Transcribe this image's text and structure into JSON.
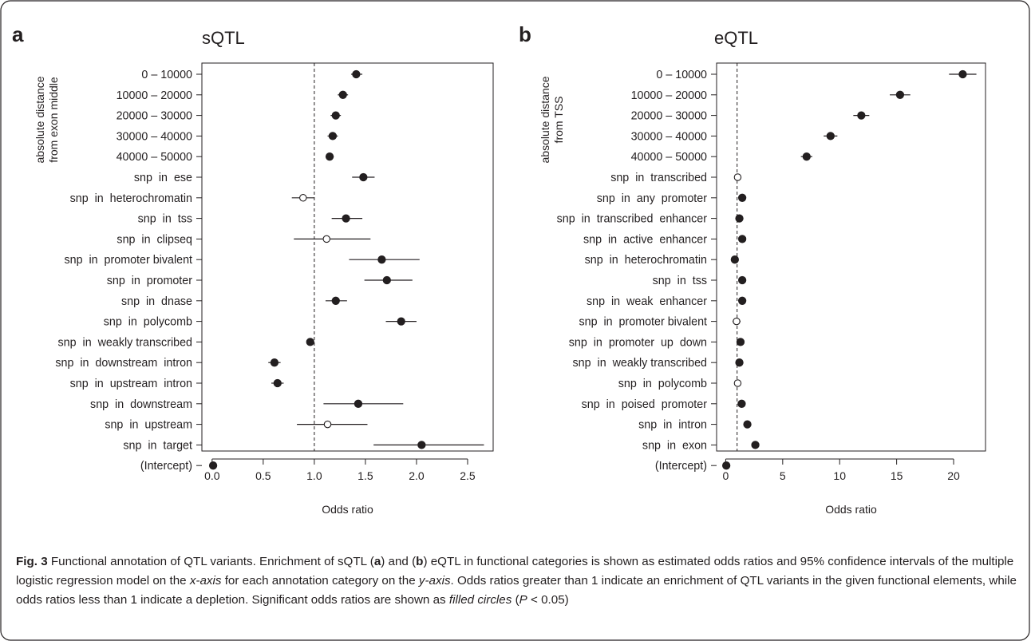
{
  "caption": {
    "label": "Fig. 3",
    "p1": " Functional annotation of QTL variants. Enrichment of sQTL (",
    "a": "a",
    "p2": ") and (",
    "b": "b",
    "p3": ") eQTL in functional categories is shown as estimated odds ratios and 95% confidence intervals of the multiple logistic regression model on the ",
    "xaxis": "x-axis",
    "p4": " for each annotation category on the ",
    "yaxis": "y-axis",
    "p5": ". Odds ratios greater than 1 indicate an enrichment of QTL variants in the given functional elements, while odds ratios less than 1 indicate a depletion. Significant odds ratios are shown as ",
    "filled": "filled circles",
    "p6": " (",
    "pvar": "P",
    "p7": " < 0.05)"
  },
  "chart_data": [
    {
      "type": "scatter",
      "panel_letter": "a",
      "title": "sQTL",
      "xlabel": "Odds ratio",
      "ylabel": [
        "absolute distance",
        "from exon middle"
      ],
      "xlim": [
        -0.1,
        2.75
      ],
      "xticks": [
        0.0,
        0.5,
        1.0,
        1.5,
        2.0,
        2.5
      ],
      "xtick_labels": [
        "0.0",
        "0.5",
        "1.0",
        "1.5",
        "2.0",
        "2.5"
      ],
      "reference_line": 1,
      "categories": [
        "0 – 10000",
        "10000 – 20000",
        "20000 – 30000",
        "30000 – 40000",
        "40000 – 50000",
        "snp  in  ese",
        "snp  in  heterochromatin",
        "snp  in  tss",
        "snp  in  clipseq",
        "snp  in  promoter bivalent",
        "snp  in  promoter",
        "snp  in  dnase",
        "snp  in  polycomb",
        "snp  in  weakly transcribed",
        "snp  in  downstream  intron",
        "snp  in  upstream  intron",
        "snp  in  downstream",
        "snp  in  upstream",
        "snp  in  target",
        "(Intercept)"
      ],
      "estimate": [
        1.41,
        1.28,
        1.21,
        1.18,
        1.15,
        1.48,
        0.89,
        1.31,
        1.12,
        1.66,
        1.71,
        1.21,
        1.85,
        0.96,
        0.61,
        0.64,
        1.43,
        1.13,
        2.05,
        0.01
      ],
      "ci_low": [
        1.36,
        1.23,
        1.16,
        1.13,
        1.11,
        1.37,
        0.78,
        1.17,
        0.8,
        1.34,
        1.49,
        1.11,
        1.7,
        0.93,
        0.55,
        0.58,
        1.09,
        0.83,
        1.58,
        0.0
      ],
      "ci_high": [
        1.47,
        1.33,
        1.26,
        1.23,
        1.19,
        1.59,
        1.0,
        1.47,
        1.55,
        2.03,
        1.96,
        1.32,
        2.0,
        0.99,
        0.67,
        0.7,
        1.87,
        1.52,
        2.66,
        0.02
      ],
      "significant": [
        true,
        true,
        true,
        true,
        true,
        true,
        false,
        true,
        false,
        true,
        true,
        true,
        true,
        true,
        true,
        true,
        true,
        false,
        true,
        true
      ]
    },
    {
      "type": "scatter",
      "panel_letter": "b",
      "title": "eQTL",
      "xlabel": "Odds ratio",
      "ylabel": [
        "absolute distance",
        "from TSS"
      ],
      "xlim": [
        -0.8,
        22.8
      ],
      "xticks": [
        0,
        5,
        10,
        15,
        20
      ],
      "xtick_labels": [
        "0",
        "5",
        "10",
        "15",
        "20"
      ],
      "reference_line": 1,
      "categories": [
        "0 – 10000",
        "10000 – 20000",
        "20000 – 30000",
        "30000 – 40000",
        "40000 – 50000",
        "snp  in  transcribed",
        "snp  in  any  promoter",
        "snp  in  transcribed  enhancer",
        "snp  in  active  enhancer",
        "snp  in  heterochromatin",
        "snp  in  tss",
        "snp  in  weak  enhancer",
        "snp  in  promoter bivalent",
        "snp  in  promoter  up  down",
        "snp  in  weakly transcribed",
        "snp  in  polycomb",
        "snp  in  poised  promoter",
        "snp  in  intron",
        "snp  in  exon",
        "(Intercept)"
      ],
      "estimate": [
        20.8,
        15.3,
        11.9,
        9.2,
        7.1,
        1.05,
        1.45,
        1.2,
        1.45,
        0.8,
        1.45,
        1.45,
        0.95,
        1.3,
        1.2,
        1.05,
        1.4,
        1.9,
        2.6,
        0.05
      ],
      "ci_low": [
        19.6,
        14.4,
        11.2,
        8.6,
        6.6,
        0.9,
        1.2,
        1.05,
        1.3,
        0.7,
        1.3,
        1.3,
        0.6,
        1.15,
        1.1,
        0.85,
        1.25,
        1.75,
        2.4,
        0.0
      ],
      "ci_high": [
        22.0,
        16.2,
        12.6,
        9.8,
        7.6,
        1.2,
        1.7,
        1.35,
        1.6,
        0.9,
        1.6,
        1.6,
        1.3,
        1.45,
        1.3,
        1.25,
        1.55,
        2.05,
        2.8,
        0.1
      ],
      "significant": [
        true,
        true,
        true,
        true,
        true,
        false,
        true,
        true,
        true,
        true,
        true,
        true,
        false,
        true,
        true,
        false,
        true,
        true,
        true,
        true
      ]
    }
  ]
}
